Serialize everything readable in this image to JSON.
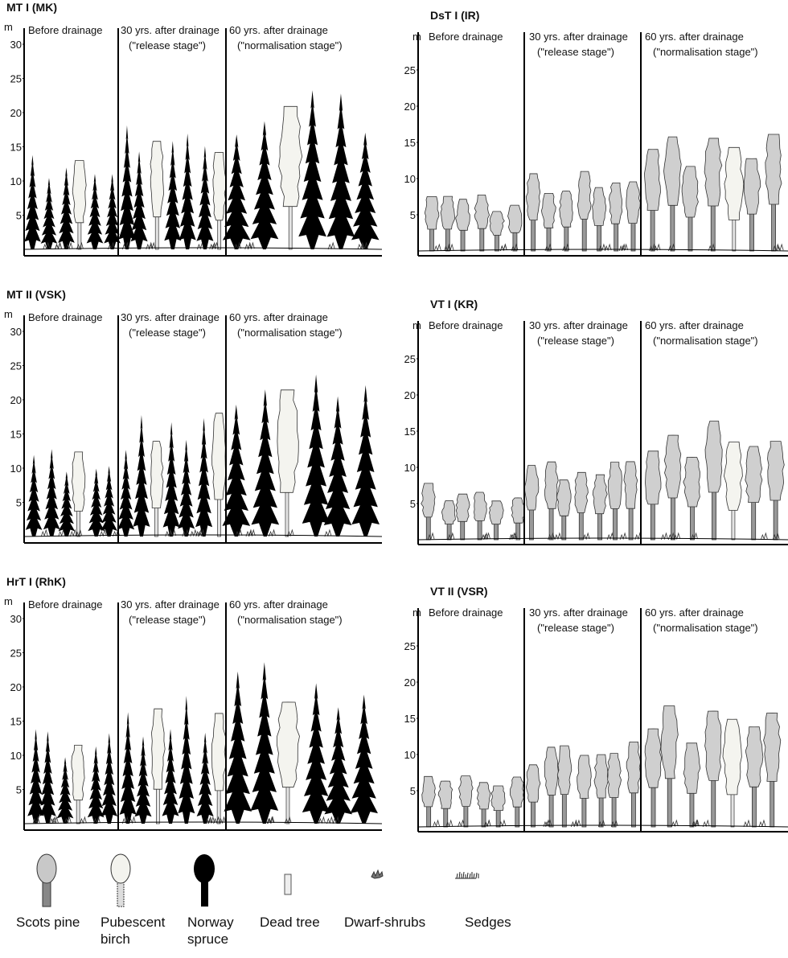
{
  "panels": [
    {
      "title": "MT I (MK)",
      "unit": "m",
      "ticks": [
        5,
        10,
        15,
        20,
        25,
        30
      ],
      "stages": [
        {
          "lines": [
            "Before drainage"
          ]
        },
        {
          "lines": [
            "30 yrs. after drainage",
            "(\"release stage\")"
          ]
        },
        {
          "lines": [
            "60 yrs. after drainage",
            "(\"normalisation stage\")"
          ]
        }
      ]
    },
    {
      "title": "DsT I (IR)",
      "unit": "m",
      "ticks": [
        5,
        10,
        15,
        20,
        25
      ],
      "stages": [
        {
          "lines": [
            "Before drainage"
          ]
        },
        {
          "lines": [
            "30 yrs. after drainage",
            "(\"release stage\")"
          ]
        },
        {
          "lines": [
            "60 yrs. after drainage",
            "(\"normalisation stage\")"
          ]
        }
      ]
    },
    {
      "title": "MT II (VSK)",
      "unit": "m",
      "ticks": [
        5,
        10,
        15,
        20,
        25,
        30
      ],
      "stages": [
        {
          "lines": [
            "Before drainage"
          ]
        },
        {
          "lines": [
            "30 yrs. after drainage",
            "(\"release stage\")"
          ]
        },
        {
          "lines": [
            "60 yrs. after drainage",
            "(\"normalisation stage\")"
          ]
        }
      ]
    },
    {
      "title": "VT I (KR)",
      "unit": "m",
      "ticks": [
        5,
        10,
        15,
        20,
        25
      ],
      "stages": [
        {
          "lines": [
            "Before drainage"
          ]
        },
        {
          "lines": [
            "30 yrs. after drainage",
            "(\"release stage\")"
          ]
        },
        {
          "lines": [
            "60 yrs. after drainage",
            "(\"normalisation stage\")"
          ]
        }
      ]
    },
    {
      "title": "HrT I (RhK)",
      "unit": "m",
      "ticks": [
        5,
        10,
        15,
        20,
        25,
        30
      ],
      "stages": [
        {
          "lines": [
            "Before drainage"
          ]
        },
        {
          "lines": [
            "30 yrs. after drainage",
            "(\"release stage\")"
          ]
        },
        {
          "lines": [
            "60 yrs. after drainage",
            "(\"normalisation stage\")"
          ]
        }
      ]
    },
    {
      "title": "VT II (VSR)",
      "unit": "m",
      "ticks": [
        5,
        10,
        15,
        20,
        25
      ],
      "stages": [
        {
          "lines": [
            "Before drainage"
          ]
        },
        {
          "lines": [
            "30 yrs. after drainage",
            "(\"release stage\")"
          ]
        },
        {
          "lines": [
            "60 yrs. after drainage",
            "(\"normalisation stage\")"
          ]
        }
      ]
    }
  ],
  "legend": [
    {
      "lines": [
        "Scots pine"
      ]
    },
    {
      "lines": [
        "Pubescent",
        "birch"
      ]
    },
    {
      "lines": [
        "Norway",
        "spruce"
      ]
    },
    {
      "lines": [
        "Dead tree"
      ]
    },
    {
      "lines": [
        "Dwarf-shrubs"
      ]
    },
    {
      "lines": [
        "Sedges"
      ]
    }
  ]
}
